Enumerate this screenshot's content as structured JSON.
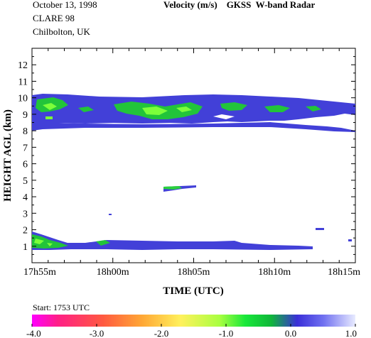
{
  "header": {
    "date": "October  13, 1998",
    "campaign": "CLARE 98",
    "location": "Chilbolton, UK",
    "title": "Velocity (m/s)    GKSS  W-band Radar"
  },
  "chart_data": {
    "type": "heatmap",
    "title": "Velocity (m/s)    GKSS  W-band Radar",
    "xlabel": "TIME (UTC)",
    "ylabel": "HEIGHT AGL (km)",
    "x_range_minutes_after_1755": [
      0,
      20
    ],
    "x_ticks": [
      {
        "label": "17h55m",
        "t": 0
      },
      {
        "label": "18h00m",
        "t": 5
      },
      {
        "label": "18h05m",
        "t": 10
      },
      {
        "label": "18h10m",
        "t": 15
      },
      {
        "label": "18h15m",
        "t": 20
      }
    ],
    "y_range_km": [
      0,
      13
    ],
    "y_ticks": [
      1,
      2,
      3,
      4,
      5,
      6,
      7,
      8,
      9,
      10,
      11,
      12
    ],
    "colorbar": {
      "ticks": [
        "-4.0",
        "-3.0",
        "-2.0",
        "-1.0",
        "0.0",
        "1.0"
      ],
      "range": [
        -4.0,
        1.0
      ],
      "colors": [
        "#ff00ff",
        "#ff2a6a",
        "#ff9a2e",
        "#ffef55",
        "#7cff3a",
        "#12c83a",
        "#3a2fd8",
        "#cfd3ff"
      ]
    },
    "start_label": "Start: 1753 UTC",
    "echo_regions": [
      {
        "name": "upper cloud layer",
        "t_start": 0,
        "t_end": 20,
        "base_km": 8.1,
        "top_km": 9.9
      },
      {
        "name": "mid-level patch",
        "t_start": 8.5,
        "t_end": 10.5,
        "base_km": 4.3,
        "top_km": 4.6
      },
      {
        "name": "lower layer",
        "t_start": 0,
        "t_end": 16.5,
        "base_km": 1.0,
        "top_km": 1.8
      }
    ]
  }
}
